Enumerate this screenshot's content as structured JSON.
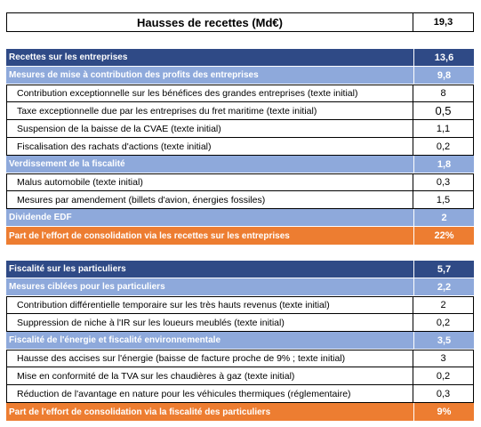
{
  "header": {
    "label": "Hausses de recettes (Md€)",
    "value": "19,3"
  },
  "section1": {
    "title": {
      "label": "Recettes sur les entreprises",
      "value": "13,6"
    },
    "group1": {
      "label": "Mesures de mise à contribution des profits des entreprises",
      "value": "9,8",
      "items": [
        {
          "label": "Contribution exceptionnelle sur les bénéfices des grandes entreprises  (texte initial)",
          "value": "8"
        },
        {
          "label": "Taxe exceptionnelle due par les entreprises du fret maritime (texte initial)",
          "value": "0,5"
        },
        {
          "label": "Suspension de la baisse de la CVAE (texte initial)",
          "value": "1,1"
        },
        {
          "label": "Fiscalisation des rachats d'actions (texte initial)",
          "value": "0,2"
        }
      ]
    },
    "group2": {
      "label": "Verdissement de la fiscalité",
      "value": "1,8",
      "items": [
        {
          "label": "Malus automobile (texte initial)",
          "value": "0,3"
        },
        {
          "label": "Mesures par amendement (billets d'avion, énergies fossiles)",
          "value": "1,5"
        }
      ]
    },
    "group3": {
      "label": "Dividende EDF",
      "value": "2"
    },
    "share": {
      "label": "Part de l'effort de consolidation via les recettes sur les entreprises",
      "value": "22%"
    }
  },
  "section2": {
    "title": {
      "label": "Fiscalité sur les particuliers",
      "value": "5,7"
    },
    "group1": {
      "label": "Mesures ciblées pour les particuliers",
      "value": "2,2",
      "items": [
        {
          "label": "Contribution différentielle temporaire sur les très hauts revenus (texte initial)",
          "value": "2"
        },
        {
          "label": "Suppression de niche à l'IR sur les loueurs meublés (texte initial)",
          "value": "0,2"
        }
      ]
    },
    "group2": {
      "label": "Fiscalité de l'énergie et fiscalité environnementale",
      "value": "3,5",
      "items": [
        {
          "label": "Hausse des accises sur l'énergie (baisse de facture proche de 9% ; texte initial)",
          "value": "3"
        },
        {
          "label": "Mise en conformité de la TVA sur les chaudières à gaz (texte initial)",
          "value": "0,2"
        },
        {
          "label": "Réduction de l'avantage en nature pour les véhicules thermiques (réglementaire)",
          "value": "0,3"
        }
      ]
    },
    "share": {
      "label": "Part de l'effort de consolidation via la fiscalité des particuliers",
      "value": "9%"
    }
  },
  "colors": {
    "dark": "#2f4a86",
    "light": "#8ea9db",
    "orange": "#ed7d31"
  }
}
